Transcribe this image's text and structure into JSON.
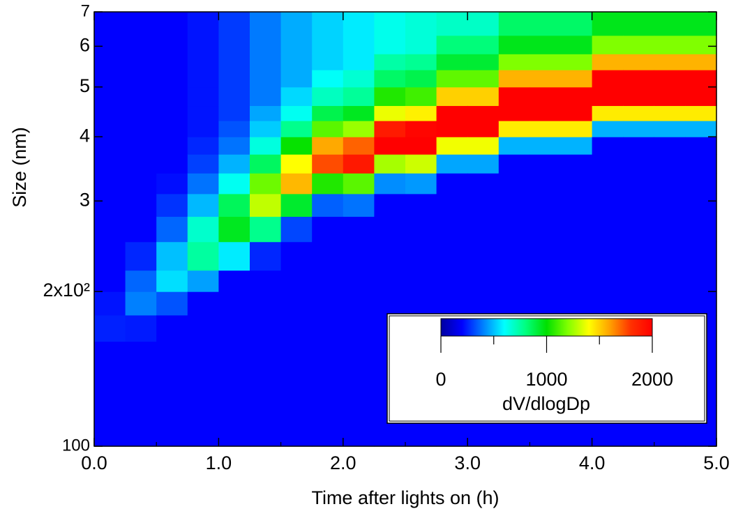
{
  "chart_data": {
    "type": "heatmap",
    "xlabel": "Time after lights on (h)",
    "ylabel": "Size (nm)",
    "x_edges": [
      0,
      0.25,
      0.5,
      0.75,
      1,
      1.25,
      1.5,
      1.75,
      2,
      2.25,
      2.5,
      2.75,
      3,
      3.25,
      3.5,
      3.75,
      4,
      4.25,
      4.5,
      4.75,
      5
    ],
    "y_edges": [
      100,
      120,
      140,
      160,
      180,
      200,
      220,
      250,
      280,
      310,
      340,
      370,
      400,
      430,
      460,
      500,
      540,
      580,
      630,
      700
    ],
    "values": [
      [
        200,
        200,
        200,
        250,
        230,
        200,
        200,
        200,
        200,
        200,
        200,
        200,
        200,
        200,
        200,
        200,
        200,
        200,
        200
      ],
      [
        200,
        200,
        200,
        240,
        400,
        360,
        260,
        200,
        200,
        200,
        200,
        200,
        200,
        200,
        200,
        200,
        200,
        200,
        200
      ],
      [
        200,
        200,
        200,
        200,
        330,
        550,
        500,
        360,
        280,
        220,
        200,
        200,
        200,
        200,
        200,
        200,
        200,
        200,
        200
      ],
      [
        200,
        200,
        200,
        200,
        200,
        450,
        750,
        680,
        490,
        380,
        300,
        260,
        230,
        230,
        230,
        230,
        230,
        230,
        230
      ],
      [
        200,
        200,
        200,
        200,
        200,
        200,
        570,
        950,
        860,
        620,
        480,
        380,
        330,
        290,
        290,
        290,
        290,
        290,
        290
      ],
      [
        200,
        200,
        200,
        200,
        200,
        200,
        260,
        780,
        1300,
        1170,
        850,
        650,
        520,
        460,
        390,
        390,
        390,
        390,
        390
      ],
      [
        200,
        200,
        200,
        200,
        200,
        200,
        200,
        310,
        930,
        1550,
        1400,
        1010,
        780,
        620,
        540,
        470,
        470,
        470,
        470
      ],
      [
        200,
        200,
        200,
        200,
        200,
        200,
        200,
        200,
        350,
        1050,
        1750,
        1580,
        1140,
        880,
        700,
        610,
        530,
        530,
        530
      ],
      [
        200,
        200,
        200,
        200,
        200,
        200,
        200,
        200,
        380,
        1140,
        1900,
        1710,
        1240,
        950,
        760,
        670,
        570,
        570,
        570
      ],
      [
        200,
        200,
        200,
        200,
        200,
        200,
        200,
        200,
        200,
        420,
        1260,
        2100,
        1890,
        1370,
        1050,
        840,
        740,
        630,
        630
      ],
      [
        200,
        200,
        200,
        200,
        200,
        200,
        200,
        200,
        200,
        440,
        1320,
        2200,
        1980,
        1430,
        1100,
        880,
        770,
        660,
        660
      ],
      [
        200,
        200,
        200,
        200,
        200,
        200,
        200,
        200,
        200,
        200,
        460,
        1380,
        2300,
        2070,
        1500,
        1150,
        920,
        810,
        690
      ],
      [
        200,
        200,
        200,
        200,
        200,
        200,
        200,
        200,
        200,
        200,
        460,
        1380,
        2300,
        2070,
        1500,
        1150,
        920,
        810,
        690
      ],
      [
        200,
        200,
        200,
        200,
        200,
        200,
        200,
        200,
        200,
        200,
        200,
        480,
        1440,
        2400,
        2160,
        1560,
        1200,
        960,
        840
      ],
      [
        200,
        200,
        200,
        200,
        200,
        200,
        200,
        200,
        200,
        200,
        200,
        480,
        1440,
        2400,
        2160,
        1560,
        1200,
        960,
        840
      ],
      [
        200,
        200,
        200,
        200,
        200,
        200,
        200,
        200,
        200,
        200,
        200,
        480,
        1440,
        2400,
        2160,
        1560,
        1200,
        960,
        840
      ],
      [
        200,
        200,
        200,
        200,
        200,
        200,
        200,
        200,
        200,
        200,
        200,
        200,
        480,
        1440,
        2400,
        2160,
        1560,
        1200,
        960
      ],
      [
        200,
        200,
        200,
        200,
        200,
        200,
        200,
        200,
        200,
        200,
        200,
        200,
        480,
        1440,
        2400,
        2160,
        1560,
        1200,
        960
      ],
      [
        200,
        200,
        200,
        200,
        200,
        200,
        200,
        200,
        200,
        200,
        200,
        200,
        480,
        1440,
        2400,
        2160,
        1560,
        1200,
        960
      ],
      [
        200,
        200,
        200,
        200,
        200,
        200,
        200,
        200,
        200,
        200,
        200,
        200,
        480,
        1440,
        2400,
        2160,
        1560,
        1200,
        960
      ]
    ],
    "xlim": [
      0,
      5
    ],
    "xticks": [
      {
        "value": 0,
        "label": "0.0"
      },
      {
        "value": 1,
        "label": "1.0"
      },
      {
        "value": 2,
        "label": "2.0"
      },
      {
        "value": 3,
        "label": "3.0"
      },
      {
        "value": 4,
        "label": "4.0"
      },
      {
        "value": 5,
        "label": "5.0"
      }
    ],
    "xminor_ticks": [
      0.5,
      1.5,
      2.5,
      3.5,
      4.5
    ],
    "ylim": [
      100,
      700
    ],
    "yscale": "log",
    "yticks": [
      100,
      {
        "value": 200,
        "label": "2x10²"
      },
      {
        "value": 300,
        "label": "3"
      },
      {
        "value": 400,
        "label": "4"
      },
      {
        "value": 500,
        "label": "5"
      },
      {
        "value": 600,
        "label": "6"
      },
      {
        "value": 700,
        "label": "7"
      }
    ],
    "colormap": [
      "#0000a0",
      "#0000ff",
      "#0080ff",
      "#00ffff",
      "#00ff80",
      "#00e000",
      "#80ff00",
      "#ffff00",
      "#ffa000",
      "#ff3000",
      "#ff0000"
    ],
    "colorbar_lim": [
      0,
      2000
    ],
    "colorbar_ticks": [
      0,
      1000,
      2000
    ],
    "colorbar_minor_ticks": [
      500,
      1500
    ],
    "colorbar_label": "dV/dlogDp"
  }
}
